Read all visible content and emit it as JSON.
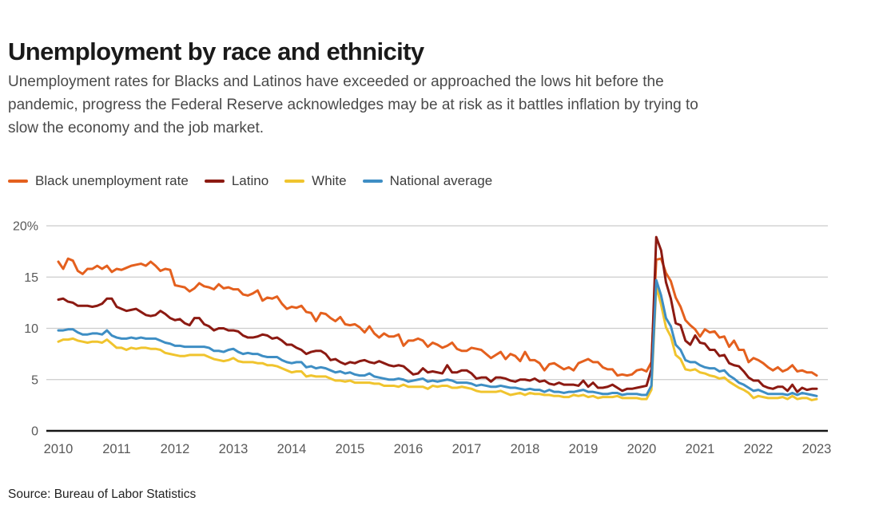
{
  "header": {
    "title": "Unemployment by race and ethnicity",
    "subtitle_lines": [
      "Unemployment rates for Blacks and Latinos have exceeded or approached the lows hit before the",
      "pandemic, progress the Federal Reserve acknowledges may be at risk as it battles inflation by trying to",
      "slow the economy and the job market."
    ]
  },
  "footer": {
    "source": "Source: Bureau of Labor Statistics"
  },
  "chart_data": {
    "type": "line",
    "title": "Unemployment by race and ethnicity",
    "unit": "percent",
    "frequency": "monthly",
    "x_start": "2010-01",
    "x_end": "2023-01",
    "grid": true,
    "legend_position": "top",
    "colors": {
      "grid": "#cccccc",
      "zero_axis": "#161616",
      "tick_text": "#595959"
    },
    "y_axis": {
      "min": 0,
      "max": 20,
      "ticks": [
        {
          "value": 0,
          "label": "0"
        },
        {
          "value": 5,
          "label": "5"
        },
        {
          "value": 10,
          "label": "10"
        },
        {
          "value": 15,
          "label": "15"
        },
        {
          "value": 20,
          "label": "20%"
        }
      ]
    },
    "x_axis": {
      "ticks": [
        2010,
        2011,
        2012,
        2013,
        2014,
        2015,
        2016,
        2017,
        2018,
        2019,
        2020,
        2021,
        2022,
        2023
      ]
    },
    "series": [
      {
        "name": "Black unemployment rate",
        "color": "#E4601E",
        "values": [
          16.5,
          15.8,
          16.8,
          16.6,
          15.6,
          15.3,
          15.8,
          15.8,
          16.1,
          15.8,
          16.1,
          15.5,
          15.8,
          15.7,
          15.9,
          16.1,
          16.2,
          16.3,
          16.1,
          16.5,
          16.1,
          15.6,
          15.8,
          15.7,
          14.2,
          14.1,
          14.0,
          13.6,
          13.9,
          14.4,
          14.1,
          14.0,
          13.8,
          14.3,
          13.9,
          14.0,
          13.8,
          13.8,
          13.3,
          13.2,
          13.4,
          13.7,
          12.7,
          13.0,
          12.9,
          13.1,
          12.4,
          11.9,
          12.1,
          12.0,
          12.2,
          11.6,
          11.5,
          10.7,
          11.5,
          11.4,
          11.0,
          10.7,
          11.1,
          10.4,
          10.3,
          10.4,
          10.1,
          9.6,
          10.2,
          9.5,
          9.1,
          9.5,
          9.2,
          9.2,
          9.4,
          8.3,
          8.8,
          8.8,
          9.0,
          8.8,
          8.2,
          8.6,
          8.4,
          8.1,
          8.3,
          8.6,
          8.0,
          7.8,
          7.8,
          8.1,
          8.0,
          7.9,
          7.5,
          7.1,
          7.4,
          7.7,
          7.0,
          7.5,
          7.3,
          6.8,
          7.7,
          6.9,
          6.9,
          6.6,
          5.9,
          6.5,
          6.6,
          6.3,
          6.0,
          6.2,
          5.9,
          6.6,
          6.8,
          7.0,
          6.7,
          6.7,
          6.2,
          6.0,
          6.0,
          5.4,
          5.5,
          5.4,
          5.5,
          5.9,
          6.0,
          5.8,
          6.7,
          16.7,
          16.8,
          15.4,
          14.6,
          13.0,
          12.1,
          10.8,
          10.3,
          9.9,
          9.2,
          9.9,
          9.6,
          9.7,
          9.1,
          9.2,
          8.2,
          8.8,
          7.9,
          7.9,
          6.7,
          7.1,
          6.9,
          6.6,
          6.2,
          5.9,
          6.2,
          5.8,
          6.0,
          6.4,
          5.8,
          5.9,
          5.7,
          5.7,
          5.4
        ]
      },
      {
        "name": "Latino",
        "color": "#8C1A12",
        "values": [
          12.8,
          12.9,
          12.6,
          12.5,
          12.2,
          12.2,
          12.2,
          12.1,
          12.2,
          12.4,
          12.9,
          12.9,
          12.1,
          11.9,
          11.7,
          11.8,
          11.9,
          11.6,
          11.3,
          11.2,
          11.3,
          11.7,
          11.4,
          11.0,
          10.8,
          10.9,
          10.5,
          10.3,
          11.0,
          11.0,
          10.4,
          10.2,
          9.8,
          10.0,
          10.0,
          9.8,
          9.8,
          9.7,
          9.3,
          9.1,
          9.1,
          9.2,
          9.4,
          9.3,
          9.0,
          9.1,
          8.8,
          8.4,
          8.4,
          8.1,
          7.9,
          7.5,
          7.7,
          7.8,
          7.8,
          7.5,
          6.9,
          7.0,
          6.7,
          6.5,
          6.7,
          6.6,
          6.8,
          6.9,
          6.7,
          6.6,
          6.8,
          6.6,
          6.4,
          6.3,
          6.4,
          6.3,
          5.9,
          5.5,
          5.6,
          6.1,
          5.7,
          5.8,
          5.7,
          5.6,
          6.4,
          5.7,
          5.7,
          5.9,
          5.9,
          5.6,
          5.1,
          5.2,
          5.2,
          4.8,
          5.2,
          5.2,
          5.1,
          4.9,
          4.8,
          5.0,
          5.0,
          4.9,
          5.1,
          4.8,
          4.9,
          4.6,
          4.5,
          4.7,
          4.5,
          4.5,
          4.5,
          4.4,
          4.9,
          4.3,
          4.7,
          4.2,
          4.2,
          4.3,
          4.5,
          4.2,
          3.9,
          4.1,
          4.1,
          4.2,
          4.3,
          4.4,
          6.0,
          18.9,
          17.6,
          14.5,
          12.9,
          10.5,
          10.3,
          8.8,
          8.4,
          9.3,
          8.6,
          8.5,
          7.9,
          7.9,
          7.3,
          7.4,
          6.6,
          6.4,
          6.3,
          5.8,
          5.2,
          4.9,
          4.9,
          4.4,
          4.2,
          4.1,
          4.3,
          4.3,
          3.9,
          4.5,
          3.8,
          4.2,
          4.0,
          4.1,
          4.1
        ]
      },
      {
        "name": "White",
        "color": "#F0C42E",
        "values": [
          8.7,
          8.9,
          8.9,
          9.0,
          8.8,
          8.7,
          8.6,
          8.7,
          8.7,
          8.6,
          8.9,
          8.5,
          8.1,
          8.1,
          7.9,
          8.1,
          8.0,
          8.1,
          8.1,
          8.0,
          8.0,
          7.9,
          7.6,
          7.5,
          7.4,
          7.3,
          7.3,
          7.4,
          7.4,
          7.4,
          7.4,
          7.2,
          7.0,
          6.9,
          6.8,
          6.9,
          7.1,
          6.8,
          6.7,
          6.7,
          6.7,
          6.6,
          6.6,
          6.4,
          6.4,
          6.3,
          6.1,
          5.9,
          5.7,
          5.8,
          5.8,
          5.3,
          5.4,
          5.3,
          5.3,
          5.3,
          5.1,
          4.9,
          4.9,
          4.8,
          4.9,
          4.7,
          4.7,
          4.7,
          4.7,
          4.6,
          4.6,
          4.4,
          4.4,
          4.4,
          4.3,
          4.5,
          4.3,
          4.3,
          4.3,
          4.3,
          4.1,
          4.4,
          4.3,
          4.4,
          4.4,
          4.2,
          4.2,
          4.3,
          4.2,
          4.1,
          3.9,
          3.8,
          3.8,
          3.8,
          3.8,
          3.9,
          3.7,
          3.5,
          3.6,
          3.7,
          3.5,
          3.7,
          3.6,
          3.6,
          3.5,
          3.5,
          3.4,
          3.4,
          3.3,
          3.3,
          3.5,
          3.4,
          3.5,
          3.3,
          3.4,
          3.2,
          3.3,
          3.3,
          3.3,
          3.4,
          3.2,
          3.2,
          3.2,
          3.2,
          3.1,
          3.1,
          4.0,
          14.1,
          12.3,
          10.1,
          9.2,
          7.4,
          7.0,
          6.0,
          5.9,
          6.0,
          5.7,
          5.6,
          5.4,
          5.3,
          5.1,
          5.2,
          4.8,
          4.5,
          4.2,
          4.0,
          3.7,
          3.2,
          3.4,
          3.3,
          3.2,
          3.2,
          3.2,
          3.3,
          3.1,
          3.4,
          3.1,
          3.2,
          3.2,
          3.0,
          3.1
        ]
      },
      {
        "name": "National average",
        "color": "#3E8EC4",
        "values": [
          9.8,
          9.8,
          9.9,
          9.9,
          9.6,
          9.4,
          9.4,
          9.5,
          9.5,
          9.4,
          9.8,
          9.3,
          9.1,
          9.0,
          9.0,
          9.1,
          9.0,
          9.1,
          9.0,
          9.0,
          9.0,
          8.8,
          8.6,
          8.5,
          8.3,
          8.3,
          8.2,
          8.2,
          8.2,
          8.2,
          8.2,
          8.1,
          7.8,
          7.8,
          7.7,
          7.9,
          8.0,
          7.7,
          7.5,
          7.6,
          7.5,
          7.5,
          7.3,
          7.2,
          7.2,
          7.2,
          6.9,
          6.7,
          6.6,
          6.7,
          6.7,
          6.2,
          6.3,
          6.1,
          6.2,
          6.1,
          5.9,
          5.7,
          5.8,
          5.6,
          5.7,
          5.5,
          5.4,
          5.4,
          5.6,
          5.3,
          5.2,
          5.1,
          5.0,
          5.0,
          5.1,
          5.0,
          4.8,
          4.9,
          5.0,
          5.1,
          4.8,
          4.9,
          4.8,
          4.9,
          5.0,
          4.9,
          4.7,
          4.7,
          4.7,
          4.6,
          4.4,
          4.5,
          4.4,
          4.3,
          4.3,
          4.4,
          4.3,
          4.2,
          4.2,
          4.1,
          4.0,
          4.1,
          4.0,
          4.0,
          3.8,
          4.0,
          3.8,
          3.8,
          3.7,
          3.8,
          3.8,
          3.9,
          4.0,
          3.8,
          3.8,
          3.7,
          3.6,
          3.6,
          3.7,
          3.7,
          3.5,
          3.6,
          3.6,
          3.6,
          3.5,
          3.5,
          4.4,
          14.7,
          13.2,
          11.0,
          10.2,
          8.4,
          7.9,
          6.9,
          6.7,
          6.7,
          6.4,
          6.2,
          6.1,
          6.1,
          5.8,
          5.9,
          5.4,
          5.1,
          4.7,
          4.5,
          4.2,
          3.9,
          4.0,
          3.8,
          3.6,
          3.6,
          3.6,
          3.6,
          3.5,
          3.7,
          3.5,
          3.7,
          3.6,
          3.5,
          3.4
        ]
      }
    ]
  }
}
